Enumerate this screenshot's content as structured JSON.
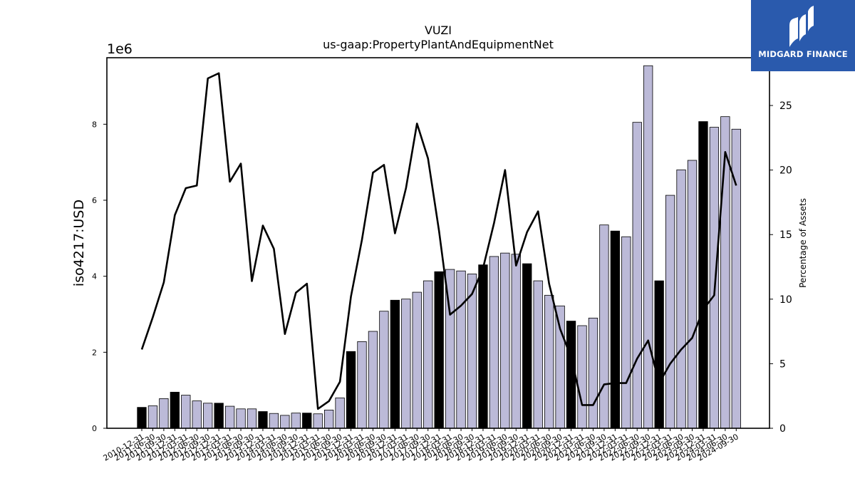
{
  "chart_data": {
    "type": "bar",
    "title": "VUZI",
    "subtitle": "us-gaap:PropertyPlantAndEquipmentNet",
    "ylabel": "iso4217:USD",
    "y_offset_label": "1e6",
    "y2label": "Percentage of Assets",
    "ylim": [
      0,
      9750000
    ],
    "y2lim": [
      0,
      28.7
    ],
    "yticks": [
      0,
      2,
      4,
      6,
      8
    ],
    "y2ticks": [
      0,
      5,
      10,
      15,
      20,
      25
    ],
    "categories": [
      "2010-12-31",
      "2011-06-30",
      "2011-09-30",
      "2011-12-31",
      "2012-03-31",
      "2012-06-30",
      "2012-09-30",
      "2012-12-31",
      "2013-03-31",
      "2013-06-30",
      "2013-09-30",
      "2013-12-31",
      "2014-03-31",
      "2014-06-30",
      "2014-09-30",
      "2014-12-31",
      "2015-03-31",
      "2015-06-30",
      "2015-09-30",
      "2015-12-31",
      "2016-03-31",
      "2016-06-30",
      "2016-09-30",
      "2016-12-31",
      "2017-03-31",
      "2017-06-30",
      "2017-09-30",
      "2017-12-31",
      "2018-03-31",
      "2018-06-30",
      "2018-09-30",
      "2018-12-31",
      "2019-03-31",
      "2019-06-30",
      "2019-09-30",
      "2019-12-31",
      "2020-03-31",
      "2020-06-30",
      "2020-09-30",
      "2020-12-31",
      "2021-03-31",
      "2021-06-30",
      "2021-09-30",
      "2021-12-31",
      "2022-03-31",
      "2022-06-30",
      "2022-09-30",
      "2022-12-31",
      "2023-03-31",
      "2023-06-30",
      "2023-09-30",
      "2023-12-31",
      "2024-03-31",
      "2024-06-30",
      "2024-09-30"
    ],
    "series": [
      {
        "values": [
          550000,
          590000,
          780000,
          950000,
          870000,
          720000,
          660000,
          660000,
          580000,
          510000,
          510000,
          440000,
          390000,
          340000,
          400000,
          400000,
          380000,
          480000,
          800000,
          2020000,
          2280000,
          2550000,
          3080000,
          3370000,
          3400000,
          3580000,
          3880000,
          4120000,
          4180000,
          4140000,
          4060000,
          4300000,
          4520000,
          4610000,
          4580000,
          4330000,
          3880000,
          3500000,
          3220000,
          2820000,
          2700000,
          2900000,
          5350000,
          5190000,
          5040000,
          8050000,
          9540000,
          3880000,
          6130000,
          6800000,
          7050000,
          8070000,
          7920000,
          8200000,
          7870000
        ],
        "annual": [
          true,
          false,
          false,
          true,
          false,
          false,
          false,
          true,
          false,
          false,
          false,
          true,
          false,
          false,
          false,
          true,
          false,
          false,
          false,
          true,
          false,
          false,
          false,
          true,
          false,
          false,
          false,
          true,
          false,
          false,
          false,
          true,
          false,
          false,
          false,
          true,
          false,
          false,
          false,
          true,
          false,
          false,
          false,
          true,
          false,
          false,
          false,
          true,
          false,
          false,
          false,
          true,
          false,
          false,
          false
        ]
      },
      {
        "axis": "right",
        "values": [
          6.1,
          8.6,
          11.3,
          16.5,
          18.6,
          18.8,
          27.1,
          27.5,
          19.1,
          20.5,
          11.4,
          15.7,
          13.9,
          7.3,
          10.5,
          11.2,
          1.5,
          2.1,
          3.6,
          10.2,
          14.6,
          19.8,
          20.4,
          15.1,
          18.6,
          23.6,
          20.9,
          15.3,
          8.8,
          9.5,
          10.4,
          12.4,
          15.9,
          20.0,
          12.6,
          15.2,
          16.8,
          11.2,
          7.7,
          5.5,
          1.8,
          1.8,
          3.4,
          3.5,
          3.5,
          5.4,
          6.8,
          3.5,
          5.0,
          6.1,
          7.0,
          9.2,
          10.3,
          21.4,
          18.8
        ]
      }
    ],
    "grid": false,
    "legend": "none",
    "colors": {
      "annual_bar": "#000000",
      "quarter_bar": "#bcbad8",
      "bar_edge": "#000000",
      "line": "#000000"
    }
  },
  "logo": {
    "text": "MIDGARD FINANCE",
    "bg": "#2a5aad"
  }
}
